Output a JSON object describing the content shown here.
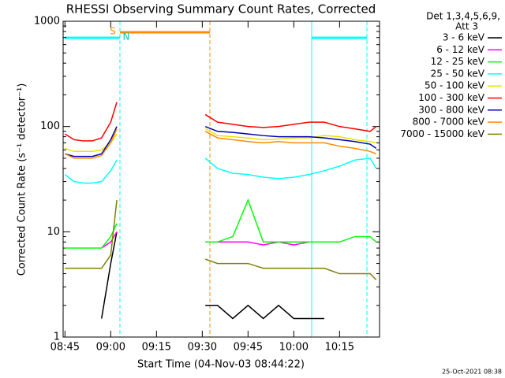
{
  "chart_data": {
    "type": "line",
    "title": "RHESSI Observing Summary Count Rates, Corrected",
    "xlabel": "Start Time (04-Nov-03 08:44:22)",
    "ylabel": "Corrected Count Rate (s⁻¹ detector⁻¹)",
    "legend_title": [
      "Det 1,3,4,5,6,9,",
      "Att 3"
    ],
    "annotations": [
      "S",
      "N"
    ],
    "footer": "25-Oct-2021 08:38",
    "log_y": true,
    "legend": "right",
    "xlim": [
      524.4,
      628.1
    ],
    "ylim": [
      1,
      1000
    ],
    "xticks": [
      {
        "value": 525,
        "label": "08:45"
      },
      {
        "value": 540,
        "label": "09:00"
      },
      {
        "value": 555,
        "label": "09:15"
      },
      {
        "value": 570,
        "label": "09:30"
      },
      {
        "value": 585,
        "label": "09:45"
      },
      {
        "value": 600,
        "label": "10:00"
      },
      {
        "value": 615,
        "label": "10:15"
      }
    ],
    "yticks": [
      1,
      10,
      100,
      1000
    ],
    "x": [
      525,
      528,
      531,
      534,
      537,
      540,
      542,
      556,
      571,
      575,
      580,
      585,
      590,
      595,
      600,
      605,
      610,
      615,
      620,
      625,
      627
    ],
    "series": [
      {
        "name": "3 - 6 keV",
        "color": "#000000",
        "values": [
          null,
          null,
          null,
          null,
          1.5,
          5,
          10,
          null,
          2,
          2,
          1.5,
          2,
          1.5,
          2,
          1.5,
          1.5,
          1.5,
          null,
          null,
          null,
          null
        ]
      },
      {
        "name": "6 - 12 keV",
        "color": "#ff00ff",
        "values": [
          null,
          null,
          null,
          null,
          7,
          8,
          10,
          null,
          8,
          8,
          8,
          8,
          7.5,
          8,
          7.5,
          8,
          8,
          8,
          null,
          null,
          null
        ]
      },
      {
        "name": "12 - 25 keV",
        "color": "#00ff00",
        "values": [
          7,
          7,
          7,
          7,
          7,
          9,
          12,
          null,
          8,
          8,
          9,
          20,
          8,
          8,
          8,
          8,
          8,
          8,
          9,
          9,
          8
        ]
      },
      {
        "name": "25 - 50 keV",
        "color": "#00ffff",
        "values": [
          35,
          30,
          29,
          29,
          30,
          38,
          48,
          null,
          50,
          40,
          36,
          35,
          33,
          32,
          33,
          35,
          38,
          42,
          48,
          50,
          40
        ]
      },
      {
        "name": "50 - 100 keV",
        "color": "#e6e600",
        "values": [
          62,
          58,
          58,
          58,
          60,
          70,
          85,
          null,
          95,
          82,
          80,
          78,
          75,
          76,
          78,
          78,
          82,
          80,
          75,
          72,
          70
        ]
      },
      {
        "name": "100 - 300 keV",
        "color": "#ff0000",
        "values": [
          85,
          75,
          73,
          73,
          78,
          110,
          170,
          null,
          130,
          110,
          105,
          100,
          98,
          100,
          105,
          110,
          110,
          100,
          95,
          90,
          100
        ]
      },
      {
        "name": "300 - 800 keV",
        "color": "#0000b4",
        "values": [
          55,
          52,
          52,
          52,
          55,
          75,
          100,
          null,
          100,
          90,
          88,
          85,
          82,
          80,
          80,
          80,
          78,
          75,
          72,
          68,
          62
        ]
      },
      {
        "name": "800 - 7000 keV",
        "color": "#ff8c00",
        "values": [
          55,
          50,
          50,
          50,
          53,
          70,
          95,
          null,
          90,
          78,
          75,
          72,
          70,
          72,
          70,
          70,
          70,
          65,
          62,
          58,
          55
        ]
      },
      {
        "name": "7000 - 15000 keV",
        "color": "#808000",
        "values": [
          4.5,
          4.5,
          4.5,
          4.5,
          4.5,
          6,
          20,
          null,
          5.5,
          5,
          5,
          5,
          4.5,
          4.5,
          4.5,
          4.5,
          4.5,
          4,
          4,
          4,
          3.5
        ]
      }
    ]
  }
}
